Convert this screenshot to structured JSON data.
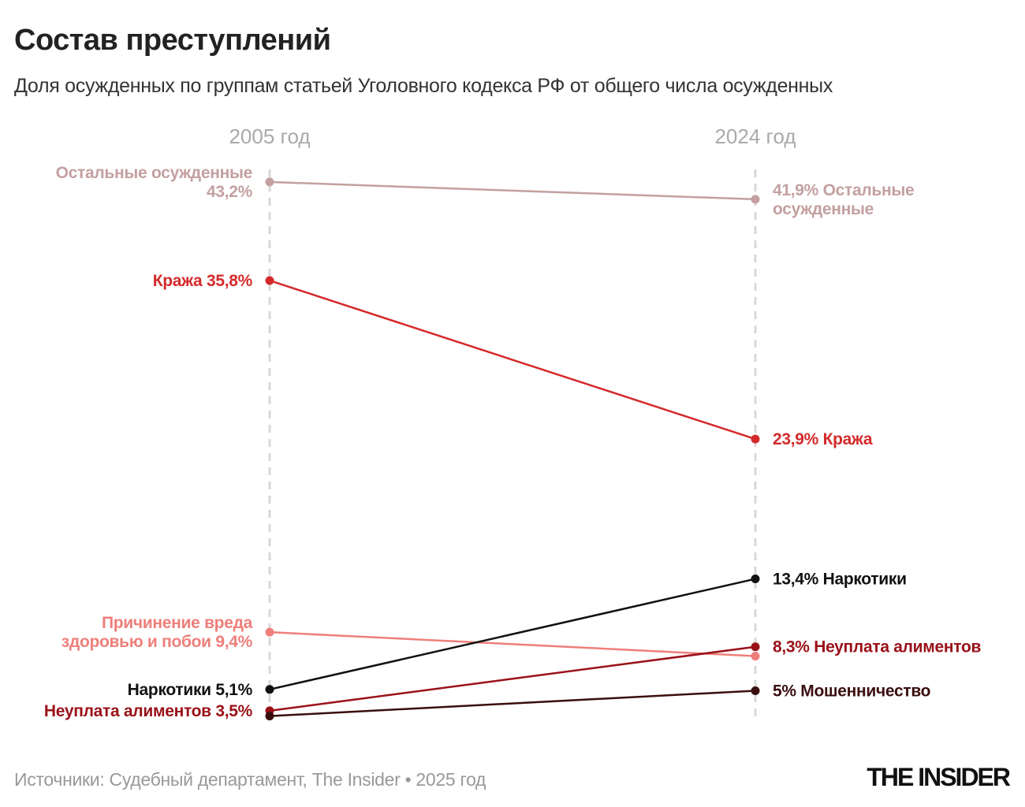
{
  "title": "Состав преступлений",
  "subtitle": "Доля осужденных по группам статьей Уголовного кодекса РФ от общего числа осужденных",
  "source": "Источники: Судебный департамент, The Insider • 2025 год",
  "logo": "THE INSIDER",
  "chart_data": {
    "type": "slope",
    "title": "Состав преступлений",
    "categories": [
      "2005 год",
      "2024 год"
    ],
    "unit": "%",
    "ylim": [
      0,
      45
    ],
    "grid": false,
    "series": [
      {
        "name": "Остальные осужденные",
        "values": [
          43.2,
          41.9
        ],
        "color": "#c4a0a0",
        "left_label": [
          "Остальные осужденные",
          "43,2%"
        ],
        "right_label": [
          "41,9% Остальные",
          "осужденные"
        ]
      },
      {
        "name": "Кража",
        "values": [
          35.8,
          23.9
        ],
        "color": "#d42a2a",
        "left_label": [
          "Кража 35,8%"
        ],
        "right_label": [
          "23,9% Кража"
        ]
      },
      {
        "name": "Причинение вреда здоровью и побои",
        "values": [
          9.4,
          7.6
        ],
        "color": "#ee7f7a",
        "left_label": [
          "Причинение вреда",
          "здоровью и побои 9,4%"
        ],
        "right_label": []
      },
      {
        "name": "Наркотики",
        "values": [
          5.1,
          13.4
        ],
        "color": "#111111",
        "left_label": [
          "Наркотики 5,1%"
        ],
        "right_label": [
          "13,4% Наркотики"
        ]
      },
      {
        "name": "Неуплата алиментов",
        "values": [
          3.5,
          8.3
        ],
        "color": "#9a1118",
        "left_label": [
          "Неуплата алиментов 3,5%"
        ],
        "right_label": [
          "8,3% Неуплата алиментов"
        ]
      },
      {
        "name": "Мошенничество",
        "values": [
          3.1,
          5.0
        ],
        "color": "#3a0e0e",
        "left_label": [],
        "right_label": [
          "5% Мошенничество"
        ]
      }
    ]
  }
}
